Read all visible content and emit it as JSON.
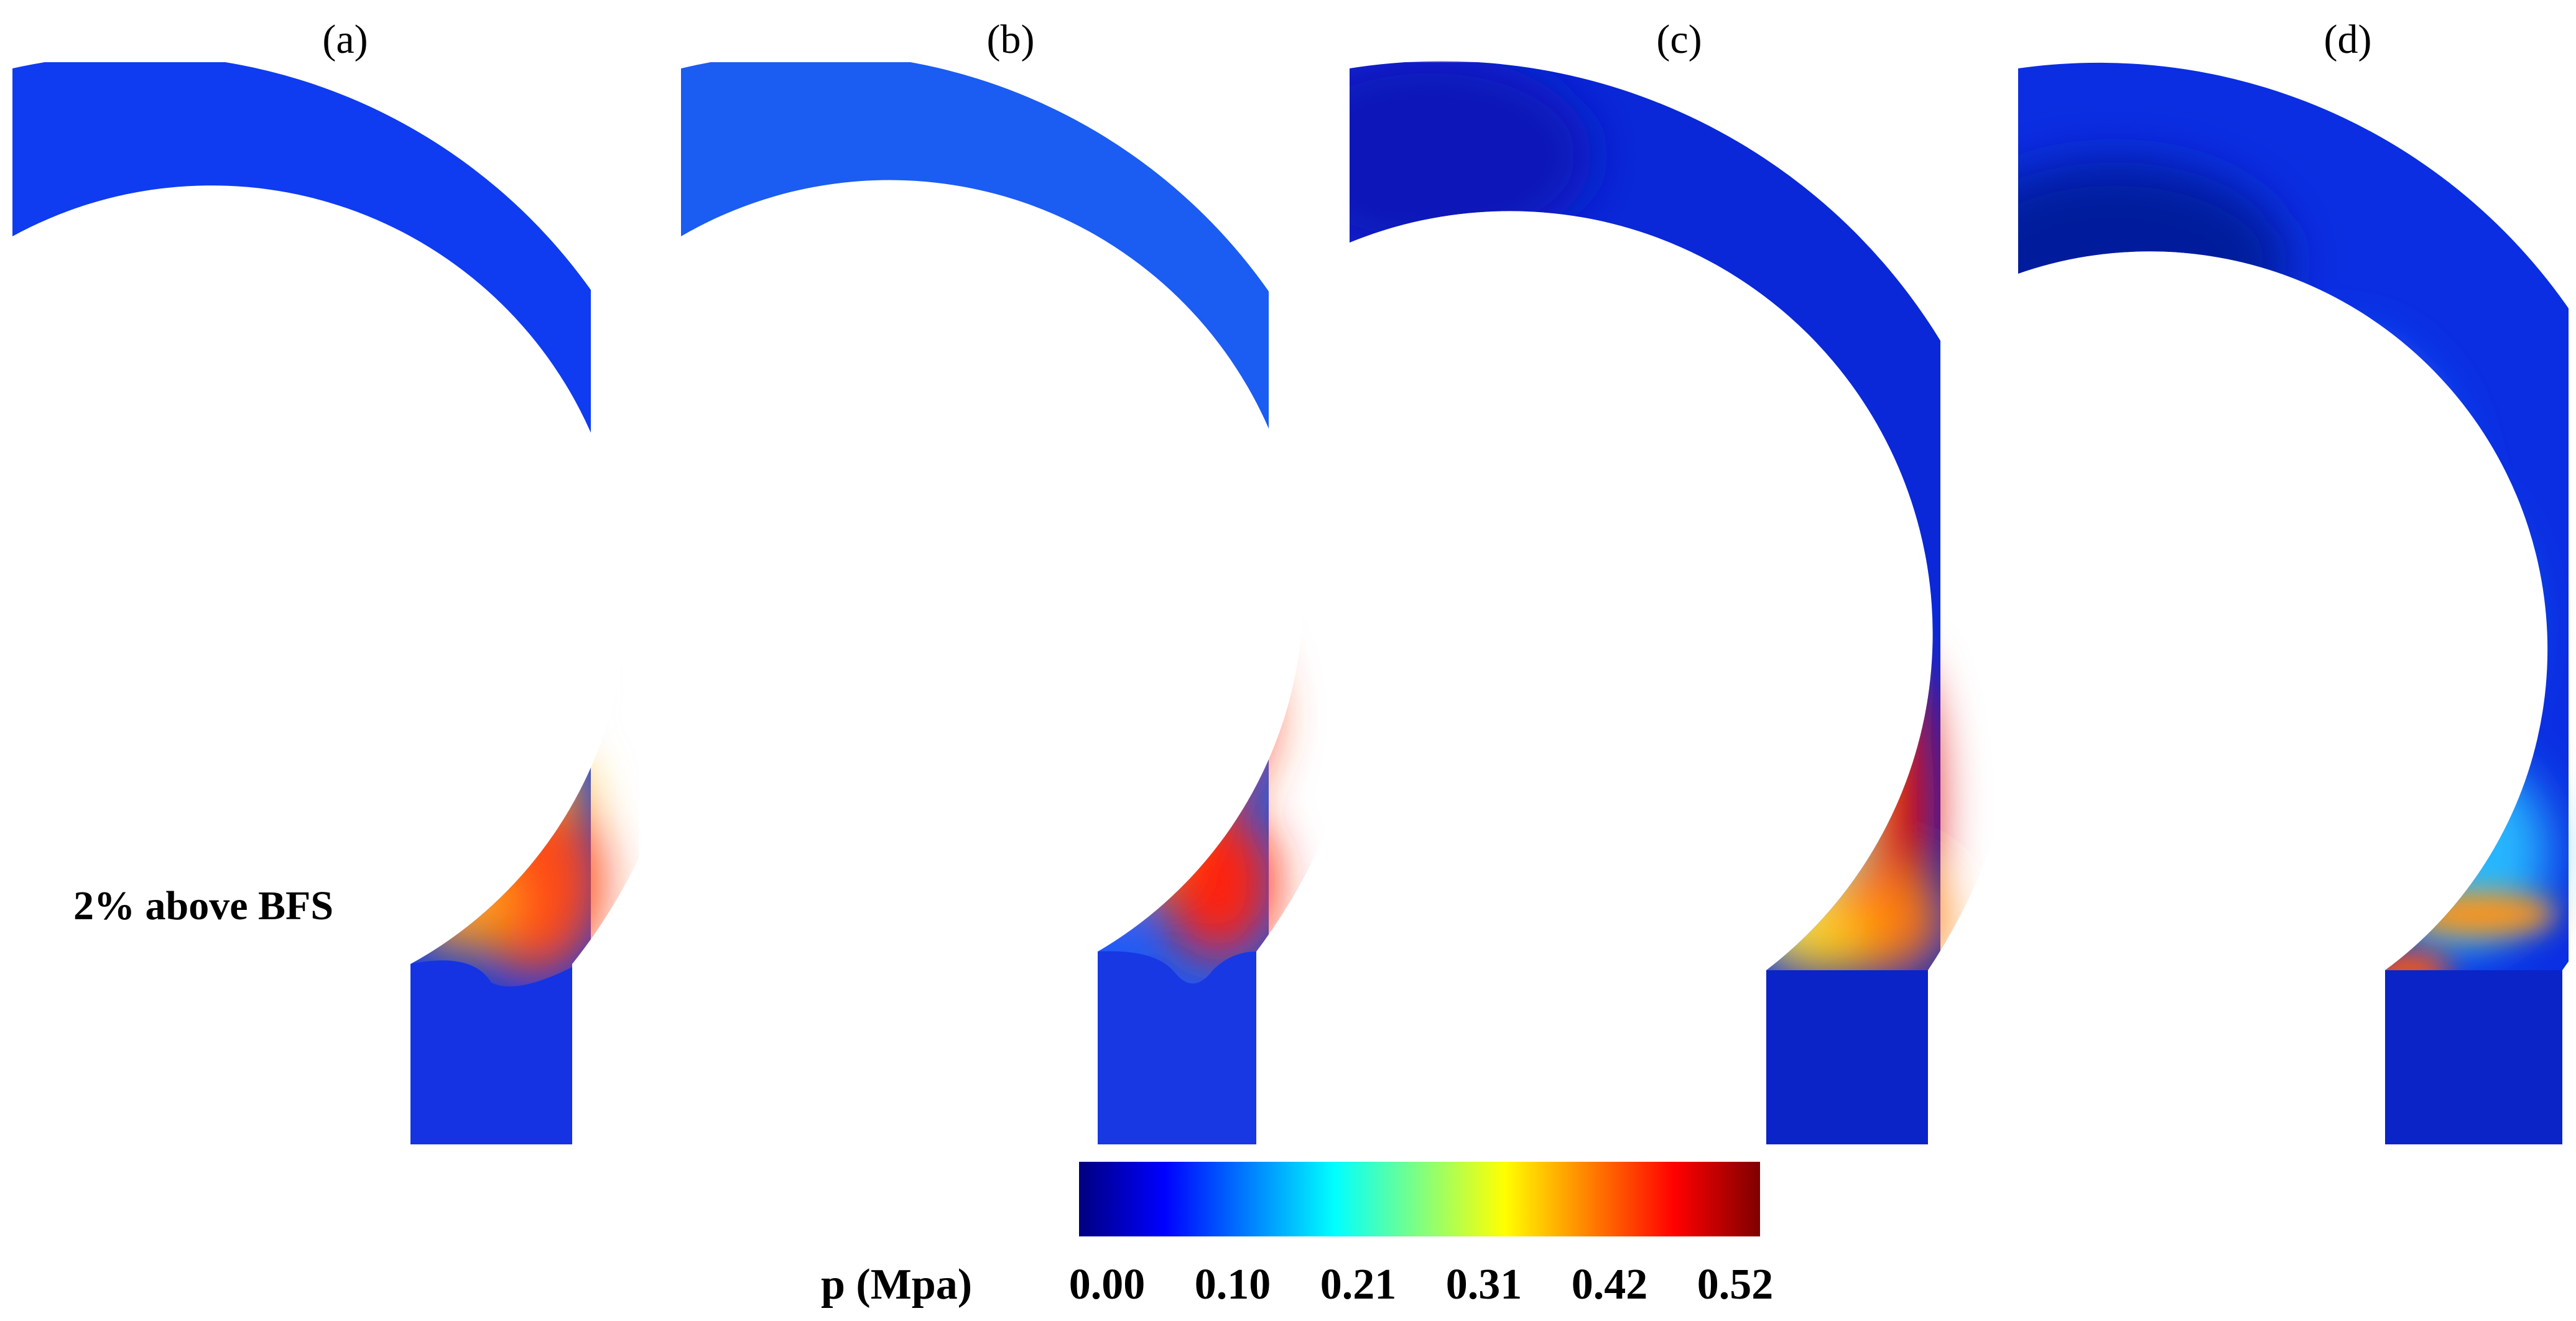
{
  "panels": [
    {
      "label": "(a)"
    },
    {
      "label": "(b)"
    },
    {
      "label": "(c)"
    },
    {
      "label": "(d)"
    }
  ],
  "annotation": "2% above BFS",
  "colorbar": {
    "title": "p (Mpa)",
    "ticks": [
      "0.00",
      "0.10",
      "0.21",
      "0.31",
      "0.42",
      "0.52"
    ],
    "colormap": "jet",
    "stops": [
      "#00007f",
      "#0000ff",
      "#00ffff",
      "#ffff00",
      "#ff0000",
      "#7f0000"
    ]
  }
}
